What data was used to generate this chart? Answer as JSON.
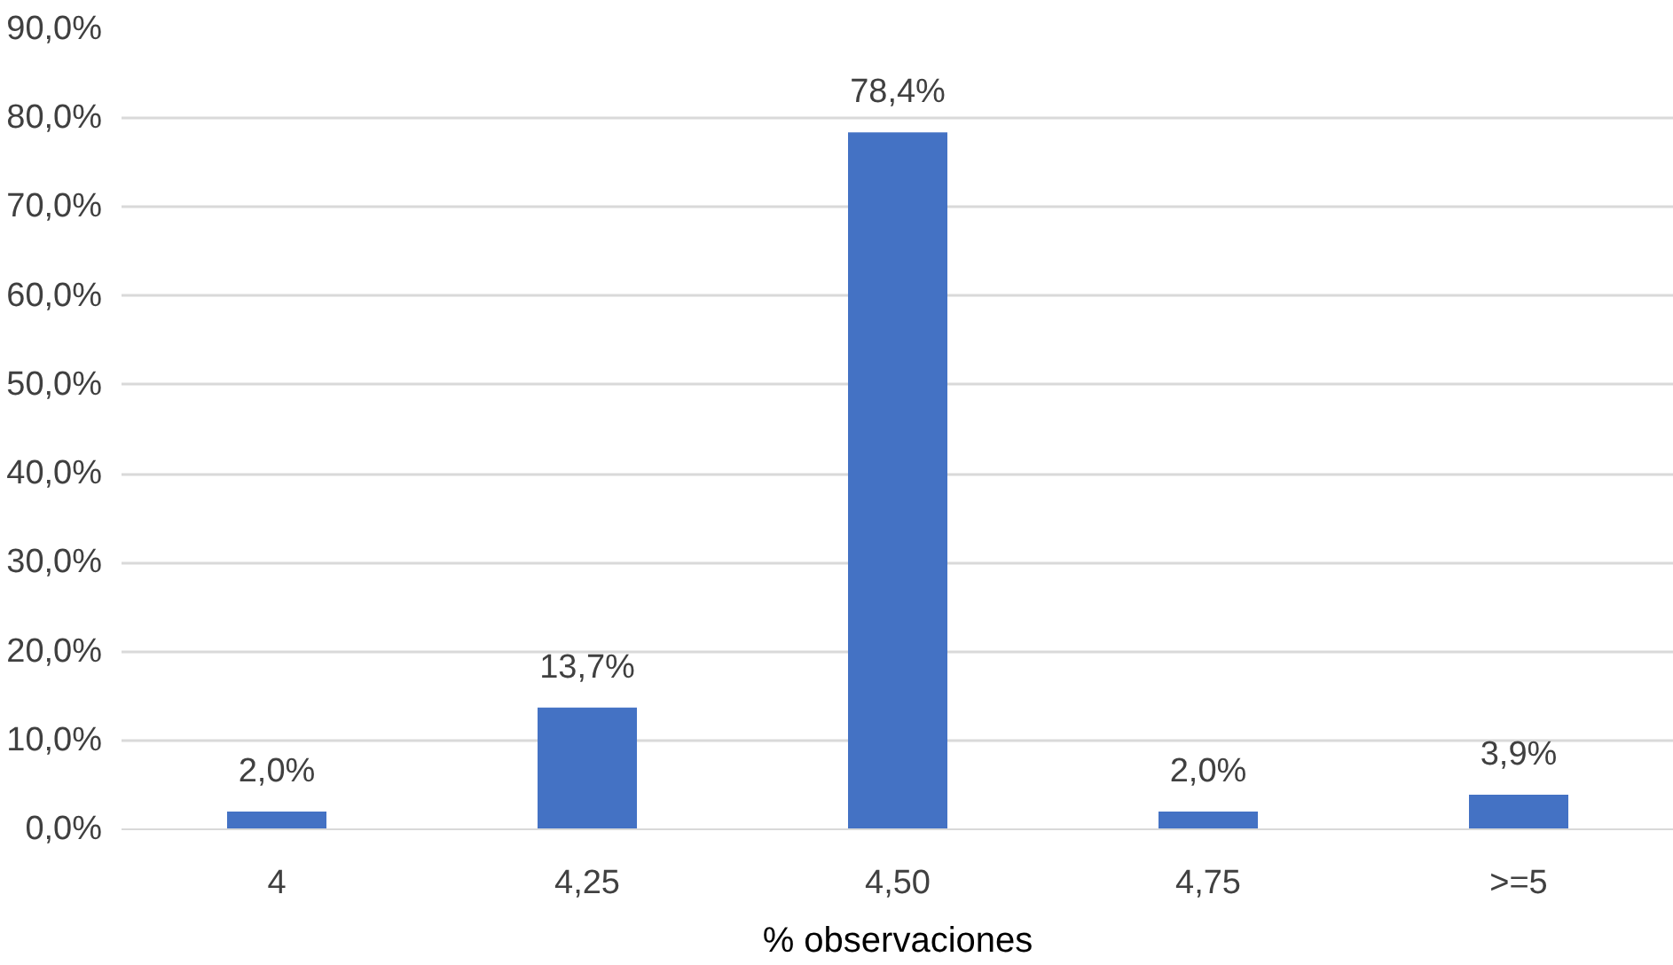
{
  "chart_data": {
    "type": "bar",
    "xlabel": "% observaciones",
    "categories": [
      "4",
      "4,25",
      "4,50",
      "4,75",
      ">=5"
    ],
    "values": [
      2.0,
      13.7,
      78.4,
      2.0,
      3.9
    ],
    "value_labels": [
      "2,0%",
      "13,7%",
      "78,4%",
      "2,0%",
      "3,9%"
    ],
    "color": "#4472c4",
    "ylim": [
      0,
      90
    ],
    "yticks": [
      {
        "value": 0,
        "label": "0,0%"
      },
      {
        "value": 10,
        "label": "10,0%"
      },
      {
        "value": 20,
        "label": "20,0%"
      },
      {
        "value": 30,
        "label": "30,0%"
      },
      {
        "value": 40,
        "label": "40,0%"
      },
      {
        "value": 50,
        "label": "50,0%"
      },
      {
        "value": 60,
        "label": "60,0%"
      },
      {
        "value": 70,
        "label": "70,0%"
      },
      {
        "value": 80,
        "label": "80,0%"
      },
      {
        "value": 90,
        "label": "90,0%"
      }
    ],
    "grid": "y"
  }
}
